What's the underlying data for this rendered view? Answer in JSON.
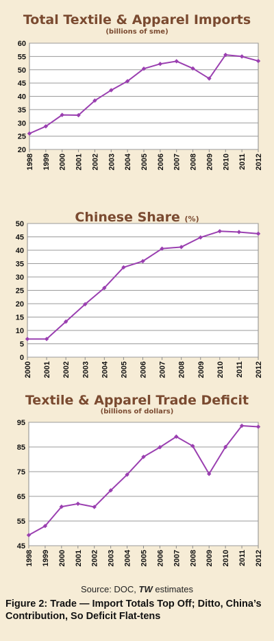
{
  "chart_data": [
    {
      "type": "line",
      "title": "Total Textile & Apparel Imports",
      "subtitle": "(billions of sme)",
      "categories": [
        "1998",
        "1999",
        "2000",
        "2001",
        "2002",
        "2003",
        "2004",
        "2005",
        "2006",
        "2007",
        "2008",
        "2009",
        "2010",
        "2011",
        "2012"
      ],
      "series": [
        {
          "values": [
            26,
            28.7,
            33,
            32.9,
            38.4,
            42.3,
            45.7,
            50.4,
            52.2,
            53.2,
            50.5,
            46.7,
            55.6,
            55,
            53.3
          ]
        }
      ],
      "ylim": [
        20,
        60
      ],
      "yticks": [
        20,
        25,
        30,
        35,
        40,
        45,
        50,
        55,
        60
      ],
      "grid": true,
      "color": "#9a3fb0"
    },
    {
      "type": "line",
      "title": "Chinese Share",
      "title_unit": "(%)",
      "categories": [
        "2000",
        "2001",
        "2002",
        "2003",
        "2004",
        "2005",
        "2006",
        "2007",
        "2008",
        "2009",
        "2010",
        "2011",
        "2012"
      ],
      "series": [
        {
          "values": [
            6.8,
            6.8,
            13.3,
            19.8,
            25.9,
            33.6,
            35.9,
            40.6,
            41.2,
            44.8,
            47.1,
            46.8,
            46.2
          ]
        }
      ],
      "ylim": [
        0,
        50
      ],
      "yticks": [
        0,
        5,
        10,
        15,
        20,
        25,
        30,
        35,
        40,
        45,
        50
      ],
      "grid": true,
      "color": "#9a3fb0"
    },
    {
      "type": "line",
      "title": "Textile & Apparel Trade Deficit",
      "subtitle": "(billions of dollars)",
      "categories": [
        "1998",
        "1999",
        "2000",
        "2001",
        "2002",
        "2003",
        "2004",
        "2005",
        "2006",
        "2007",
        "2008",
        "2009",
        "2010",
        "2011",
        "2012"
      ],
      "series": [
        {
          "values": [
            49.3,
            53,
            60.8,
            62,
            60.7,
            67.4,
            73.8,
            81,
            84.9,
            89.2,
            85.4,
            74.1,
            85,
            93.6,
            93.2
          ]
        }
      ],
      "ylim": [
        45,
        95
      ],
      "yticks": [
        45,
        55,
        65,
        75,
        85,
        95
      ],
      "grid": true,
      "color": "#9a3fb0"
    }
  ],
  "source": {
    "prefix": "Source: DOC, ",
    "tw": "TW",
    "suffix": " estimates"
  },
  "caption": "Figure 2: Trade — Import Totals Top Off; Ditto, China’s Contribution, So Deficit Flat-tens"
}
